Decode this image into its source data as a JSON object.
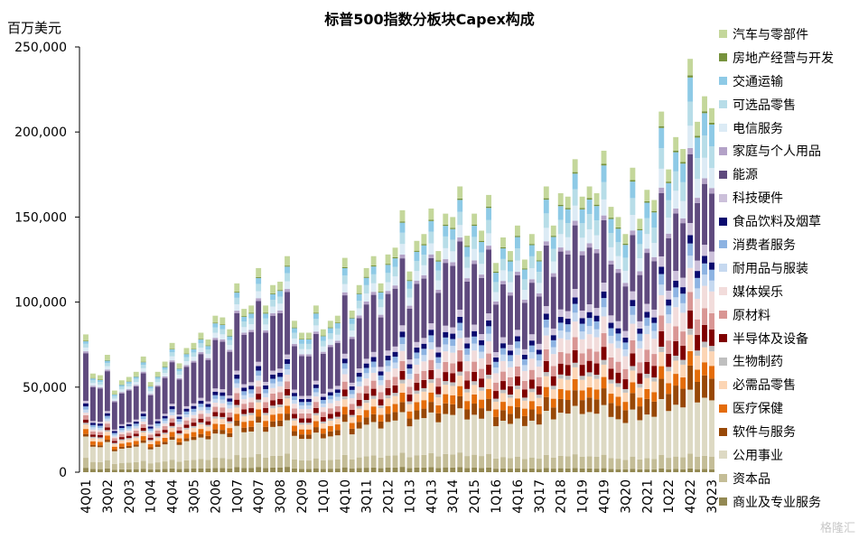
{
  "chart_data": {
    "type": "stacked_bar",
    "title": "标普500指数分板块Capex构成",
    "ylabel": "百万美元",
    "ylim": [
      0,
      250000
    ],
    "yticks": [
      0,
      50000,
      100000,
      150000,
      200000,
      250000
    ],
    "ytick_labels": [
      "0",
      "50,000",
      "100,000",
      "150,000",
      "200,000",
      "250,000"
    ],
    "xtick_labels": [
      "4Q01",
      "3Q02",
      "2Q03",
      "1Q04",
      "4Q04",
      "3Q05",
      "2Q06",
      "1Q07",
      "4Q07",
      "3Q08",
      "2Q09",
      "1Q10",
      "4Q10",
      "3Q11",
      "2Q12",
      "1Q13",
      "4Q13",
      "3Q14",
      "2Q15",
      "1Q16",
      "4Q16",
      "3Q17",
      "2Q18",
      "1Q19",
      "4Q19",
      "3Q20",
      "2Q21",
      "1Q22",
      "4Q22",
      "3Q23"
    ],
    "categories": [
      "4Q01",
      "1Q02",
      "2Q02",
      "3Q02",
      "4Q02",
      "1Q03",
      "2Q03",
      "3Q03",
      "4Q03",
      "1Q04",
      "2Q04",
      "3Q04",
      "4Q04",
      "1Q05",
      "2Q05",
      "3Q05",
      "4Q05",
      "1Q06",
      "2Q06",
      "3Q06",
      "4Q06",
      "1Q07",
      "2Q07",
      "3Q07",
      "4Q07",
      "1Q08",
      "2Q08",
      "3Q08",
      "4Q08",
      "1Q09",
      "2Q09",
      "3Q09",
      "4Q09",
      "1Q10",
      "2Q10",
      "3Q10",
      "4Q10",
      "1Q11",
      "2Q11",
      "3Q11",
      "4Q11",
      "1Q12",
      "2Q12",
      "3Q12",
      "4Q12",
      "1Q13",
      "2Q13",
      "3Q13",
      "4Q13",
      "1Q14",
      "2Q14",
      "3Q14",
      "4Q14",
      "1Q15",
      "2Q15",
      "3Q15",
      "4Q15",
      "1Q16",
      "2Q16",
      "3Q16",
      "4Q16",
      "1Q17",
      "2Q17",
      "3Q17",
      "4Q17",
      "1Q18",
      "2Q18",
      "3Q18",
      "4Q18",
      "1Q19",
      "2Q19",
      "3Q19",
      "4Q19",
      "1Q20",
      "2Q20",
      "3Q20",
      "4Q20",
      "1Q21",
      "2Q21",
      "3Q21",
      "4Q21",
      "1Q22",
      "2Q22",
      "3Q22",
      "4Q22",
      "1Q23",
      "2Q23",
      "3Q23"
    ],
    "totals": [
      81000,
      58000,
      57000,
      69000,
      48000,
      54000,
      56000,
      59000,
      68000,
      53000,
      59000,
      65000,
      76000,
      64000,
      73000,
      76000,
      82000,
      78000,
      92000,
      91000,
      84000,
      111000,
      96000,
      98000,
      120000,
      98000,
      110000,
      112000,
      127000,
      89000,
      82000,
      82000,
      98000,
      84000,
      89000,
      92000,
      126000,
      95000,
      110000,
      120000,
      127000,
      111000,
      128000,
      132000,
      154000,
      118000,
      136000,
      140000,
      155000,
      130000,
      152000,
      150000,
      168000,
      139000,
      152000,
      142000,
      163000,
      123000,
      138000,
      130000,
      145000,
      125000,
      140000,
      130000,
      168000,
      145000,
      164000,
      162000,
      184000,
      162000,
      168000,
      164000,
      189000,
      156000,
      150000,
      140000,
      179000,
      149000,
      166000,
      160000,
      212000,
      178000,
      197000,
      190000,
      243000,
      206000,
      221000,
      214000
    ],
    "series_order_bottom_to_top": [
      "商业及专业服务",
      "资本品",
      "公用事业",
      "软件与服务",
      "医疗保健",
      "必需品零售",
      "生物制药",
      "半导体及设备",
      "原材料",
      "媒体娱乐",
      "耐用品与服装",
      "消费者服务",
      "食品饮料及烟草",
      "科技硬件",
      "能源",
      "家庭与个人用品",
      "电信服务",
      "可选品零售",
      "交通运输",
      "房地产经营与开发",
      "汽车与零部件"
    ],
    "series": [
      {
        "name": "汽车与零部件",
        "color": "#c4d79b"
      },
      {
        "name": "房地产经营与开发",
        "color": "#76923c"
      },
      {
        "name": "交通运输",
        "color": "#8ecae6"
      },
      {
        "name": "可选品零售",
        "color": "#b7dde8"
      },
      {
        "name": "电信服务",
        "color": "#dcebf5"
      },
      {
        "name": "家庭与个人用品",
        "color": "#b3a2c7"
      },
      {
        "name": "能源",
        "color": "#5f4a7e"
      },
      {
        "name": "科技硬件",
        "color": "#ccc0da"
      },
      {
        "name": "食品饮料及烟草",
        "color": "#0a0a6e"
      },
      {
        "name": "消费者服务",
        "color": "#8db3e2"
      },
      {
        "name": "耐用品与服装",
        "color": "#c6d9f0"
      },
      {
        "name": "媒体娱乐",
        "color": "#f2dcdb"
      },
      {
        "name": "原材料",
        "color": "#d99694"
      },
      {
        "name": "半导体及设备",
        "color": "#7f0000"
      },
      {
        "name": "生物制药",
        "color": "#bfbfbf"
      },
      {
        "name": "必需品零售",
        "color": "#fcd5b4"
      },
      {
        "name": "医疗保健",
        "color": "#e46c0a"
      },
      {
        "name": "软件与服务",
        "color": "#984807"
      },
      {
        "name": "公用事业",
        "color": "#ddd9c3"
      },
      {
        "name": "资本品",
        "color": "#c4bd97"
      },
      {
        "name": "商业及专业服务",
        "color": "#938953"
      }
    ]
  },
  "watermark": "格隆汇"
}
